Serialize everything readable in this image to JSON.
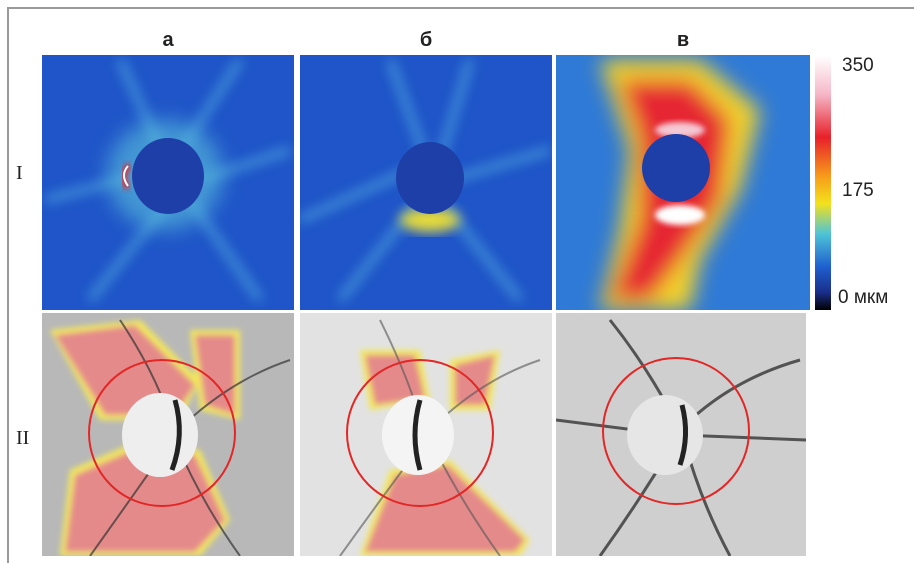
{
  "columns": [
    "а",
    "б",
    "в"
  ],
  "rows": [
    "I",
    "II"
  ],
  "colorbar": {
    "labels": [
      "350",
      "175",
      "0 мкм"
    ]
  }
}
